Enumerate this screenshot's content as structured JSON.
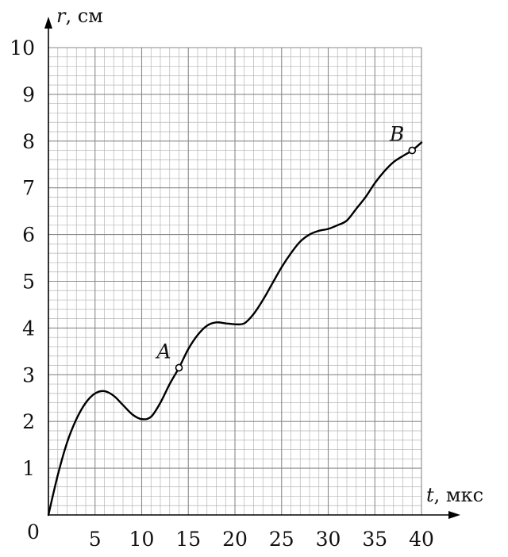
{
  "chart_data": {
    "type": "line",
    "title": "",
    "xlabel": "t, мкс",
    "ylabel": "r, см",
    "xlabel_var": "t",
    "xlabel_unit": ", мкс",
    "ylabel_var": "r",
    "ylabel_unit": ", см",
    "origin_label": "0",
    "xlim": [
      0,
      40
    ],
    "ylim": [
      0,
      10
    ],
    "x_ticks": [
      5,
      10,
      15,
      20,
      25,
      30,
      35,
      40
    ],
    "x_tick_labels": [
      "5",
      "10",
      "15",
      "20",
      "25",
      "30",
      "35",
      "40"
    ],
    "y_ticks": [
      1,
      2,
      3,
      4,
      5,
      6,
      7,
      8,
      9,
      10
    ],
    "y_tick_labels": [
      "1",
      "2",
      "3",
      "4",
      "5",
      "6",
      "7",
      "8",
      "9",
      "10"
    ],
    "grid": true,
    "grid_minor_step": 1,
    "grid_minor_step_y": 0.2,
    "series": [
      {
        "x": [
          0,
          1,
          2,
          3,
          4,
          5,
          6,
          7,
          8,
          9,
          10,
          11,
          12,
          13,
          14,
          15,
          16,
          17,
          18,
          19,
          20,
          21,
          22,
          23,
          24,
          25,
          26,
          27,
          28,
          29,
          30,
          31,
          32,
          33,
          34,
          35,
          36,
          37,
          38,
          39,
          40
        ],
        "y": [
          0,
          0.85,
          1.55,
          2.05,
          2.4,
          2.6,
          2.65,
          2.55,
          2.35,
          2.15,
          2.05,
          2.1,
          2.4,
          2.8,
          3.15,
          3.55,
          3.85,
          4.05,
          4.12,
          4.1,
          4.08,
          4.1,
          4.3,
          4.6,
          4.95,
          5.3,
          5.6,
          5.85,
          6.0,
          6.08,
          6.12,
          6.2,
          6.3,
          6.55,
          6.8,
          7.1,
          7.35,
          7.55,
          7.68,
          7.8,
          7.97
        ]
      }
    ],
    "points": [
      {
        "label": "A",
        "x": 14,
        "y": 3.15
      },
      {
        "label": "B",
        "x": 39,
        "y": 7.8
      }
    ]
  }
}
